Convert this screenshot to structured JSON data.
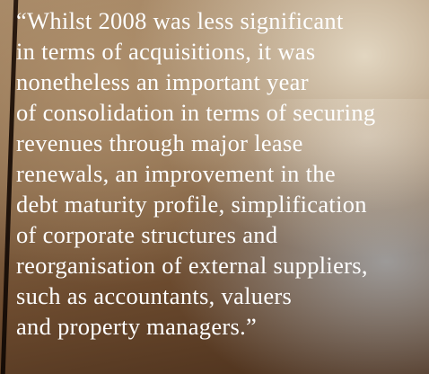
{
  "quote": {
    "lines": [
      "“Whilst 2008 was less significant",
      "in terms of acquisitions, it was",
      "nonetheless an important year",
      "of consolidation in terms of securing",
      "revenues through major lease",
      "renewals, an improvement in the",
      "debt maturity profile, simplification",
      "of corporate structures and",
      "reorganisation of external suppliers,",
      "such as accountants, valuers",
      "and property managers.”"
    ]
  }
}
